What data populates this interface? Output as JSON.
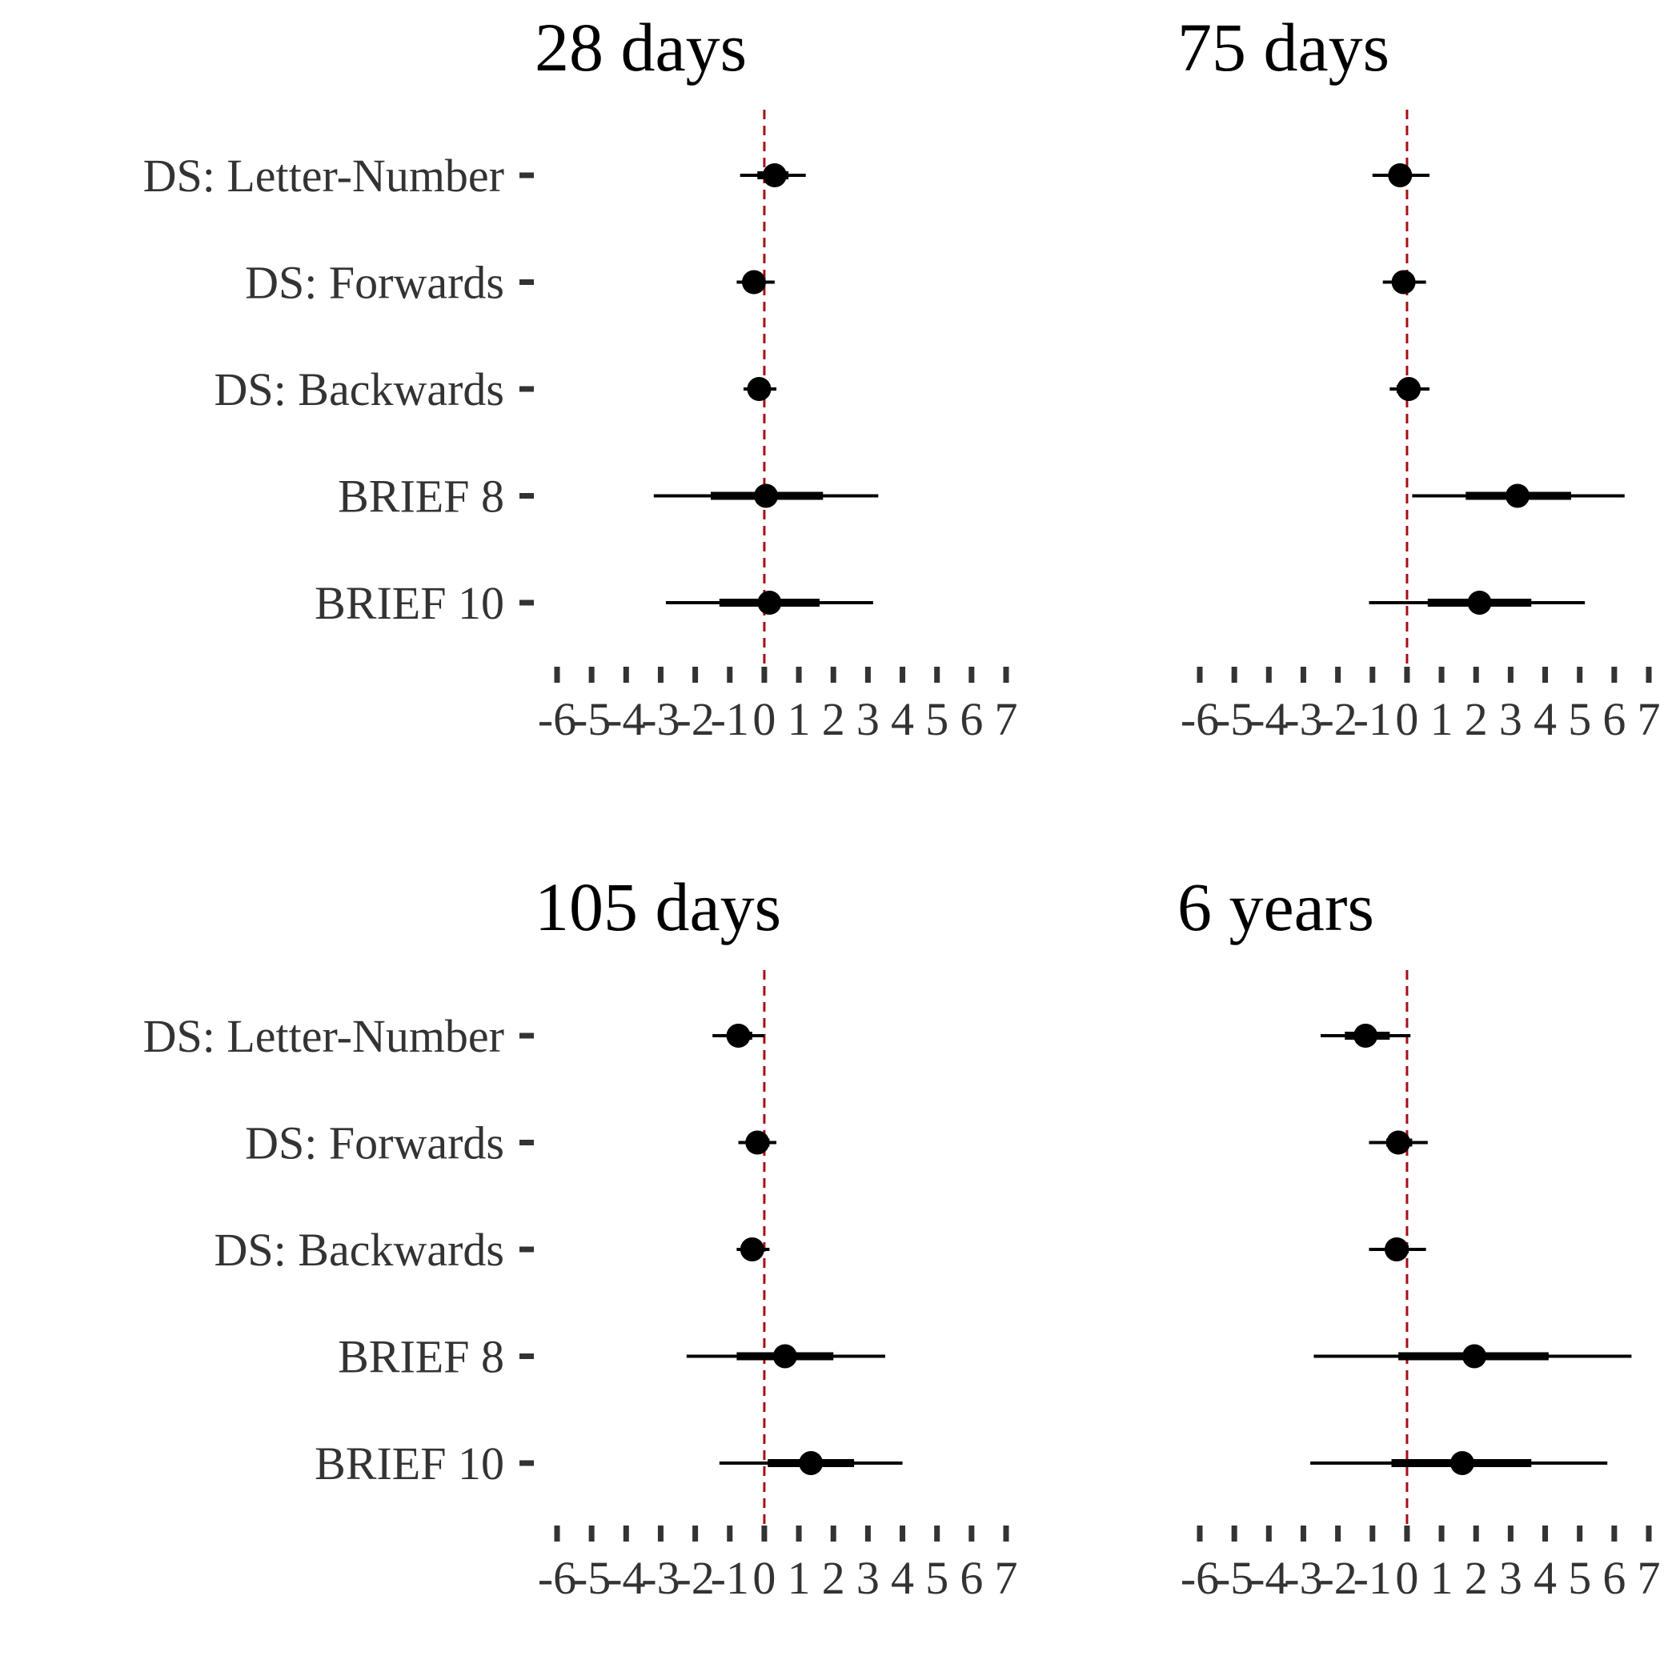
{
  "chart_data": [
    {
      "type": "forest",
      "title": "28 days",
      "categories": [
        "DS: Letter-Number",
        "DS: Forwards",
        "DS: Backwards",
        "BRIEF 8",
        "BRIEF 10"
      ],
      "points": [
        {
          "category": "DS: Letter-Number",
          "estimate": 0.3,
          "inner": [
            -0.2,
            0.7
          ],
          "outer": [
            -0.7,
            1.2
          ]
        },
        {
          "category": "DS: Forwards",
          "estimate": -0.3,
          "inner": [
            -0.6,
            -0.1
          ],
          "outer": [
            -0.8,
            0.3
          ]
        },
        {
          "category": "DS: Backwards",
          "estimate": -0.15,
          "inner": [
            -0.35,
            0.1
          ],
          "outer": [
            -0.6,
            0.35
          ]
        },
        {
          "category": "BRIEF 8",
          "estimate": 0.05,
          "inner": [
            -1.55,
            1.7
          ],
          "outer": [
            -3.2,
            3.3
          ]
        },
        {
          "category": "BRIEF 10",
          "estimate": 0.15,
          "inner": [
            -1.3,
            1.6
          ],
          "outer": [
            -2.85,
            3.15
          ]
        }
      ]
    },
    {
      "type": "forest",
      "title": "75 days",
      "categories": [
        "DS: Letter-Number",
        "DS: Forwards",
        "DS: Backwards",
        "BRIEF 8",
        "BRIEF 10"
      ],
      "points": [
        {
          "category": "DS: Letter-Number",
          "estimate": -0.2,
          "inner": [
            -0.5,
            0.1
          ],
          "outer": [
            -1.0,
            0.65
          ]
        },
        {
          "category": "DS: Forwards",
          "estimate": -0.1,
          "inner": [
            -0.35,
            0.15
          ],
          "outer": [
            -0.7,
            0.55
          ]
        },
        {
          "category": "DS: Backwards",
          "estimate": 0.05,
          "inner": [
            -0.3,
            0.3
          ],
          "outer": [
            -0.5,
            0.65
          ]
        },
        {
          "category": "BRIEF 8",
          "estimate": 3.2,
          "inner": [
            1.7,
            4.75
          ],
          "outer": [
            0.15,
            6.3
          ]
        },
        {
          "category": "BRIEF 10",
          "estimate": 2.1,
          "inner": [
            0.6,
            3.6
          ],
          "outer": [
            -1.1,
            5.15
          ]
        }
      ]
    },
    {
      "type": "forest",
      "title": "105 days",
      "categories": [
        "DS: Letter-Number",
        "DS: Forwards",
        "DS: Backwards",
        "BRIEF 8",
        "BRIEF 10"
      ],
      "points": [
        {
          "category": "DS: Letter-Number",
          "estimate": -0.75,
          "inner": [
            -1.05,
            -0.35
          ],
          "outer": [
            -1.5,
            0.0
          ]
        },
        {
          "category": "DS: Forwards",
          "estimate": -0.2,
          "inner": [
            -0.45,
            0.15
          ],
          "outer": [
            -0.75,
            0.35
          ]
        },
        {
          "category": "DS: Backwards",
          "estimate": -0.35,
          "inner": [
            -0.6,
            -0.1
          ],
          "outer": [
            -0.8,
            0.15
          ]
        },
        {
          "category": "BRIEF 8",
          "estimate": 0.6,
          "inner": [
            -0.8,
            2.0
          ],
          "outer": [
            -2.25,
            3.5
          ]
        },
        {
          "category": "BRIEF 10",
          "estimate": 1.35,
          "inner": [
            0.1,
            2.6
          ],
          "outer": [
            -1.3,
            4.0
          ]
        }
      ]
    },
    {
      "type": "forest",
      "title": "6 years",
      "categories": [
        "DS: Letter-Number",
        "DS: Forwards",
        "DS: Backwards",
        "BRIEF 8",
        "BRIEF 10"
      ],
      "points": [
        {
          "category": "DS: Letter-Number",
          "estimate": -1.2,
          "inner": [
            -1.8,
            -0.5
          ],
          "outer": [
            -2.5,
            0.1
          ]
        },
        {
          "category": "DS: Forwards",
          "estimate": -0.25,
          "inner": [
            -0.6,
            0.15
          ],
          "outer": [
            -1.1,
            0.6
          ]
        },
        {
          "category": "DS: Backwards",
          "estimate": -0.3,
          "inner": [
            -0.6,
            0.05
          ],
          "outer": [
            -1.1,
            0.55
          ]
        },
        {
          "category": "BRIEF 8",
          "estimate": 1.95,
          "inner": [
            -0.25,
            4.1
          ],
          "outer": [
            -2.7,
            6.5
          ]
        },
        {
          "category": "BRIEF 10",
          "estimate": 1.6,
          "inner": [
            -0.45,
            3.6
          ],
          "outer": [
            -2.8,
            5.8
          ]
        }
      ]
    }
  ],
  "x_ticks": [
    "-6",
    "-5",
    "-4",
    "-3",
    "-2",
    "-1",
    "0",
    "1",
    "2",
    "3",
    "4",
    "5",
    "6",
    "7"
  ],
  "xlim": [
    -6,
    7
  ],
  "reference_line": 0,
  "grid": false,
  "colors": {
    "reference_line": "#a50f15",
    "points": "#000000",
    "labels": "#333333",
    "titles": "#000000"
  }
}
